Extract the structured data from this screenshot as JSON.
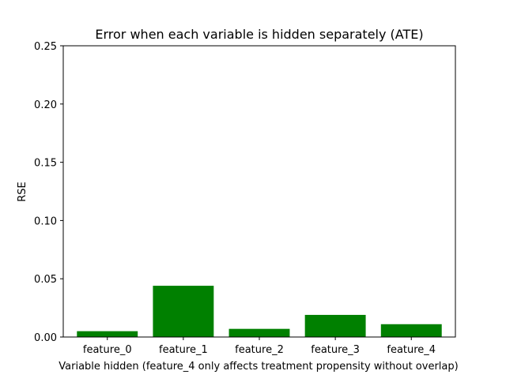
{
  "chart_data": {
    "type": "bar",
    "title": "Error when each variable is hidden separately (ATE)",
    "xlabel": "Variable hidden (feature_4 only affects treatment propensity without overlap)",
    "ylabel": "RSE",
    "categories": [
      "feature_0",
      "feature_1",
      "feature_2",
      "feature_3",
      "feature_4"
    ],
    "values": [
      0.005,
      0.044,
      0.007,
      0.019,
      0.011
    ],
    "ylim": [
      0,
      0.25
    ],
    "yticks": [
      "0.00",
      "0.05",
      "0.10",
      "0.15",
      "0.20",
      "0.25"
    ],
    "grid": false,
    "legend": "none",
    "bar_color": "#008000"
  }
}
